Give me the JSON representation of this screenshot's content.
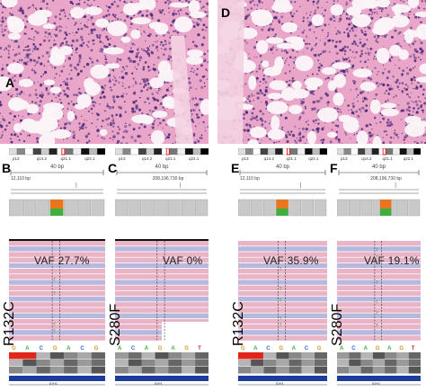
{
  "panels": {
    "A": "A",
    "B": "B",
    "C": "C",
    "D": "D",
    "E": "E",
    "F": "F"
  },
  "igv": [
    {
      "letter": "B",
      "mutation": "R132C",
      "vaf": "VAF 27.7%",
      "bp": "40 bp",
      "coord": "12,110 bp",
      "gene": "IDH1",
      "bases": [
        "G",
        "A",
        "C",
        "G",
        "A",
        "C",
        "G"
      ]
    },
    {
      "letter": "C",
      "mutation": "S280F",
      "vaf": "VAF 0%",
      "bp": "40 bp",
      "coord": "208,196,730 bp",
      "gene": "IDH1",
      "bases": [
        "A",
        "C",
        "A",
        "G",
        "A",
        "G",
        "T"
      ]
    },
    {
      "letter": "E",
      "mutation": "R132C",
      "vaf": "VAF 35.9%",
      "bp": "40 bp",
      "coord": "12,110 bp",
      "gene": "IDH1",
      "bases": [
        "G",
        "A",
        "C",
        "G",
        "A",
        "C",
        "G"
      ]
    },
    {
      "letter": "F",
      "mutation": "S280F",
      "vaf": "VAF 19.1%",
      "bp": "40 bp",
      "coord": "208,196,730 bp",
      "gene": "IDH1",
      "bases": [
        "A",
        "C",
        "A",
        "G",
        "A",
        "G",
        "T"
      ]
    }
  ],
  "ideogram_labels": [
    "p13",
    "q14.2",
    "q21.1",
    "q22.1"
  ],
  "colors": {
    "stain_pink": "#e9a6c8",
    "nuclei": "#4b2a7a",
    "read_pink": "#e8b4c6",
    "read_blue": "#b8b8df",
    "mutation_orange": "#e9751f",
    "mutation_green": "#3fae3f",
    "gene_blue": "#1d3d9a"
  }
}
